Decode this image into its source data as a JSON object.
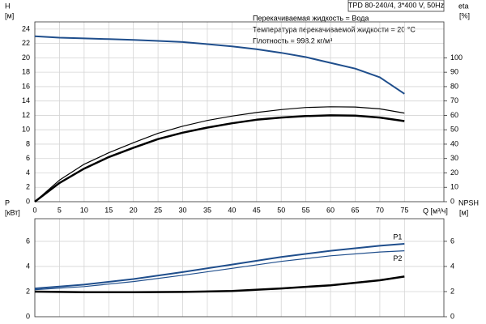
{
  "chart_data": [
    {
      "type": "line",
      "title": "TPD 80-240/4, 3*400 V, 50Hz",
      "annotations": [
        "Перекачиваемая жидкость = Вода",
        "Температура перекачиваемой жидкости = 20 °C",
        "Плотность = 998.2 кг/м³"
      ],
      "xlabel": "Q [м³/ч]",
      "ylabel": "H",
      "yunit": "[м]",
      "y2label": "eta",
      "y2unit": "[%]",
      "x": [
        0,
        5,
        10,
        15,
        20,
        25,
        30,
        35,
        40,
        45,
        50,
        55,
        60,
        65,
        70,
        75
      ],
      "xlim": [
        0,
        83
      ],
      "xticks": [
        0,
        5,
        10,
        15,
        20,
        25,
        30,
        35,
        40,
        45,
        50,
        55,
        60,
        65,
        70,
        75
      ],
      "ylim": [
        0,
        25
      ],
      "yticks": [
        0,
        2,
        4,
        6,
        8,
        10,
        12,
        14,
        16,
        18,
        20,
        22,
        24
      ],
      "y2lim": [
        0,
        125
      ],
      "y2ticks": [
        0,
        10,
        20,
        30,
        40,
        50,
        60,
        70,
        80,
        90,
        100
      ],
      "grid": true,
      "series": [
        {
          "color": "#1f4e8c",
          "line_width": 2,
          "values": [
            23.0,
            22.8,
            22.7,
            22.6,
            22.5,
            22.35,
            22.2,
            21.9,
            21.6,
            21.2,
            20.7,
            20.1,
            19.3,
            18.5,
            17.3,
            15.0
          ]
        },
        {
          "color": "#000000",
          "line_width": 1.2,
          "axis": "y2",
          "values": [
            0,
            15,
            26,
            34,
            41,
            47.5,
            52.5,
            56.5,
            59.5,
            62,
            64,
            65.5,
            66,
            65.8,
            64.5,
            61.6
          ]
        },
        {
          "color": "#000000",
          "line_width": 2.5,
          "axis": "y2",
          "values": [
            0,
            13,
            23,
            31,
            37.5,
            43.5,
            48,
            51.5,
            54.5,
            57,
            58.5,
            59.5,
            60,
            59.8,
            58.5,
            56
          ]
        }
      ]
    },
    {
      "type": "line",
      "ylabel": "P",
      "yunit": "[кВт]",
      "y2label": "NPSH",
      "y2unit": "[м]",
      "x": [
        0,
        10,
        20,
        30,
        40,
        50,
        60,
        70,
        75
      ],
      "xlim": [
        0,
        83
      ],
      "xticks": [
        0,
        5,
        10,
        15,
        20,
        25,
        30,
        35,
        40,
        45,
        50,
        55,
        60,
        65,
        70,
        75
      ],
      "ylim": [
        0,
        7.8
      ],
      "yticks": [
        0,
        2,
        4,
        6
      ],
      "y2lim": [
        0,
        7.8
      ],
      "y2ticks": [
        0,
        2,
        4,
        6
      ],
      "grid": true,
      "series": [
        {
          "name": "P1",
          "color": "#1f4e8c",
          "line_width": 2,
          "values": [
            2.25,
            2.55,
            3.0,
            3.55,
            4.15,
            4.75,
            5.25,
            5.65,
            5.8
          ]
        },
        {
          "name": "P2",
          "color": "#1f4e8c",
          "line_width": 1.2,
          "values": [
            2.15,
            2.4,
            2.8,
            3.3,
            3.85,
            4.4,
            4.85,
            5.15,
            5.25
          ]
        },
        {
          "color": "#000000",
          "line_width": 2.5,
          "axis": "y2",
          "values": [
            2.0,
            1.95,
            1.95,
            1.97,
            2.05,
            2.25,
            2.5,
            2.9,
            3.2
          ]
        }
      ]
    }
  ]
}
